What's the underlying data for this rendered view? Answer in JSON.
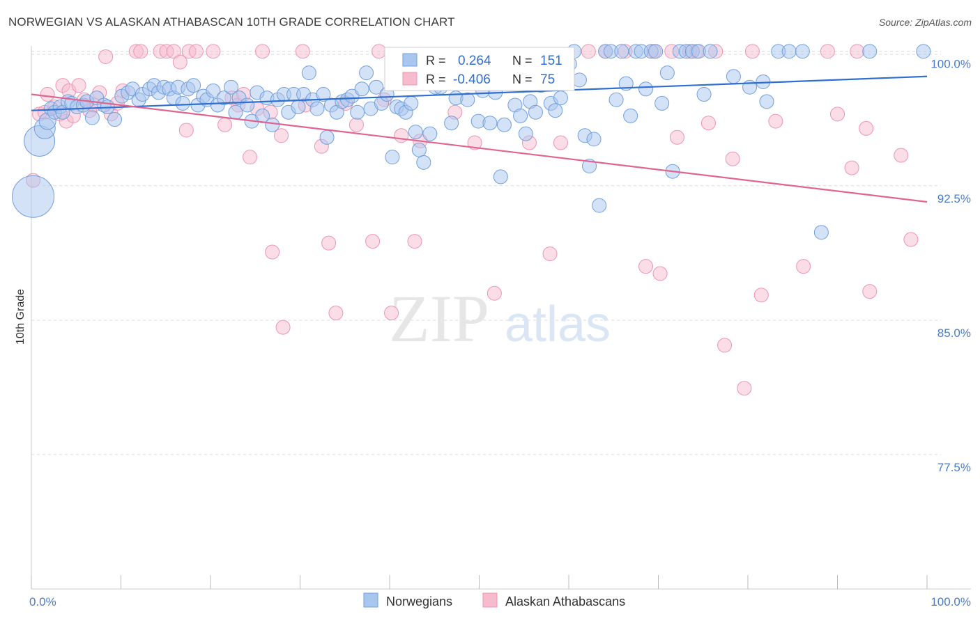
{
  "title": "NORWEGIAN VS ALASKAN ATHABASCAN 10TH GRADE CORRELATION CHART",
  "source": "Source: ZipAtlas.com",
  "watermark": {
    "zip": "ZIP",
    "atlas": "atlas"
  },
  "colors": {
    "blue_fill": "#a9c6ef",
    "blue_stroke": "#6f9fdc",
    "blue_line": "#2f6fcf",
    "pink_fill": "#f6bccd",
    "pink_stroke": "#ec95b1",
    "pink_line": "#e0648f",
    "tick_text": "#4a7cc9",
    "grid": "#d9d9d9"
  },
  "legend_top": {
    "rows": [
      {
        "r_label": "R =",
        "r_value": "0.264",
        "n_label": "N =",
        "n_value": "151",
        "series": "blue"
      },
      {
        "r_label": "R =",
        "r_value": "-0.406",
        "n_label": "N =",
        "n_value": "75",
        "series": "pink"
      }
    ]
  },
  "legend_bottom": [
    {
      "label": "Norwegians",
      "series": "blue"
    },
    {
      "label": "Alaskan Athabascans",
      "series": "pink"
    }
  ],
  "chart_data": {
    "type": "scatter",
    "title": "NORWEGIAN VS ALASKAN ATHABASCAN 10TH GRADE CORRELATION CHART",
    "xlabel": "",
    "ylabel": "10th Grade",
    "xlim": [
      0,
      100
    ],
    "ylim": [
      70,
      101
    ],
    "y_ticks": [
      {
        "value": 100,
        "label": "100.0%"
      },
      {
        "value": 92.5,
        "label": "92.5%"
      },
      {
        "value": 85,
        "label": "85.0%"
      },
      {
        "value": 77.5,
        "label": "77.5%"
      }
    ],
    "x_tick_labels": [
      {
        "value": 0,
        "label": "0.0%"
      },
      {
        "value": 100,
        "label": "100.0%"
      }
    ],
    "x_minor_ticks": [
      0,
      10,
      20,
      30,
      40,
      50,
      60,
      70,
      80,
      90,
      100
    ],
    "grid": true,
    "series": [
      {
        "name": "Norwegians",
        "color": "blue",
        "trend": {
          "x": [
            0,
            100
          ],
          "y": [
            96.7,
            98.6
          ]
        },
        "points": [
          [
            0.2,
            91.9,
            3
          ],
          [
            0.9,
            95,
            2.2
          ],
          [
            1.5,
            95.7,
            1.5
          ],
          [
            1.8,
            96.1,
            1.2
          ],
          [
            2.2,
            96.8,
            1
          ],
          [
            2.6,
            96.6,
            1
          ],
          [
            3.2,
            96.9,
            1
          ],
          [
            3.5,
            96.6,
            1
          ],
          [
            4.1,
            97.2,
            1
          ],
          [
            4.5,
            97.1,
            1
          ],
          [
            5.1,
            96.9,
            1
          ],
          [
            5.8,
            97.0,
            1
          ],
          [
            6.2,
            97.2,
            1
          ],
          [
            6.8,
            96.3,
            1
          ],
          [
            7.3,
            97.4,
            1
          ],
          [
            8.1,
            97.0,
            1
          ],
          [
            8.5,
            96.9,
            1
          ],
          [
            9.3,
            96.2,
            1
          ],
          [
            10.1,
            97.5,
            1
          ],
          [
            10.8,
            97.7,
            1
          ],
          [
            11.3,
            97.9,
            1
          ],
          [
            12.0,
            97.3,
            1
          ],
          [
            12.4,
            97.6,
            1
          ],
          [
            13.2,
            97.9,
            1
          ],
          [
            13.7,
            98.1,
            1
          ],
          [
            14.2,
            97.7,
            1
          ],
          [
            14.8,
            98.0,
            1
          ],
          [
            15.4,
            97.9,
            1
          ],
          [
            15.9,
            97.4,
            1
          ],
          [
            16.4,
            98.0,
            1
          ],
          [
            16.9,
            97.1,
            1
          ],
          [
            17.5,
            97.9,
            1
          ],
          [
            18.1,
            98.1,
            1
          ],
          [
            18.6,
            97.0,
            1
          ],
          [
            19.2,
            97.5,
            1
          ],
          [
            19.6,
            97.3,
            1
          ],
          [
            20.3,
            97.8,
            1
          ],
          [
            20.8,
            97.0,
            1
          ],
          [
            21.5,
            97.4,
            1
          ],
          [
            22.3,
            98.0,
            1
          ],
          [
            22.8,
            96.6,
            1
          ],
          [
            23.2,
            97.4,
            1
          ],
          [
            24.1,
            97.0,
            1
          ],
          [
            24.6,
            96.1,
            1
          ],
          [
            25.2,
            97.7,
            1
          ],
          [
            25.8,
            96.4,
            1
          ],
          [
            26.3,
            97.4,
            1
          ],
          [
            26.9,
            95.9,
            1
          ],
          [
            27.5,
            97.3,
            1
          ],
          [
            28.2,
            97.6,
            1
          ],
          [
            28.7,
            96.6,
            1
          ],
          [
            29.3,
            97.6,
            1
          ],
          [
            29.8,
            96.9,
            1
          ],
          [
            30.4,
            97.6,
            1
          ],
          [
            31.0,
            98.8,
            1
          ],
          [
            31.4,
            97.3,
            1
          ],
          [
            31.9,
            96.8,
            1
          ],
          [
            32.6,
            97.6,
            1
          ],
          [
            33.0,
            95.2,
            1
          ],
          [
            33.5,
            97.0,
            1
          ],
          [
            34.1,
            96.6,
            1
          ],
          [
            34.7,
            97.2,
            1
          ],
          [
            35.3,
            97.3,
            1
          ],
          [
            35.8,
            97.5,
            1
          ],
          [
            36.4,
            96.6,
            1
          ],
          [
            36.9,
            97.9,
            1
          ],
          [
            37.4,
            98.8,
            1
          ],
          [
            37.9,
            96.8,
            1
          ],
          [
            38.5,
            98.0,
            1
          ],
          [
            39.1,
            97.1,
            1
          ],
          [
            39.7,
            97.6,
            1
          ],
          [
            40.3,
            94.1,
            1
          ],
          [
            40.8,
            96.9,
            1
          ],
          [
            41.3,
            96.8,
            1
          ],
          [
            41.8,
            96.6,
            1
          ],
          [
            42.4,
            97.1,
            1
          ],
          [
            42.9,
            95.5,
            1
          ],
          [
            43.3,
            94.5,
            1
          ],
          [
            43.8,
            93.8,
            1
          ],
          [
            44.5,
            95.4,
            1
          ],
          [
            45.1,
            98.0,
            1
          ],
          [
            45.7,
            98.0,
            1
          ],
          [
            46.3,
            98.4,
            1
          ],
          [
            46.9,
            96.0,
            1
          ],
          [
            47.4,
            97.4,
            1
          ],
          [
            48.1,
            98.3,
            1
          ],
          [
            48.7,
            97.3,
            1
          ],
          [
            49.3,
            99.4,
            1
          ],
          [
            49.9,
            96.1,
            1
          ],
          [
            50.4,
            97.8,
            1
          ],
          [
            51.2,
            96.0,
            1
          ],
          [
            51.8,
            97.7,
            1
          ],
          [
            52.4,
            93.0,
            1
          ],
          [
            52.8,
            95.9,
            1
          ],
          [
            53.4,
            99.3,
            1
          ],
          [
            54.0,
            97.0,
            1
          ],
          [
            54.6,
            96.4,
            1
          ],
          [
            55.2,
            95.4,
            1
          ],
          [
            55.7,
            97.2,
            1
          ],
          [
            56.3,
            96.6,
            1
          ],
          [
            56.9,
            98.1,
            1
          ],
          [
            57.4,
            98.5,
            1
          ],
          [
            58.0,
            97.1,
            1
          ],
          [
            58.5,
            96.7,
            1
          ],
          [
            59.1,
            97.4,
            1
          ],
          [
            59.6,
            99.6,
            1
          ],
          [
            60.1,
            99.3,
            1
          ],
          [
            60.6,
            100.0,
            1
          ],
          [
            61.2,
            98.4,
            1
          ],
          [
            61.8,
            95.3,
            1
          ],
          [
            62.3,
            93.6,
            1
          ],
          [
            62.8,
            95.1,
            1
          ],
          [
            63.4,
            91.4,
            1
          ],
          [
            64.1,
            100.0,
            1
          ],
          [
            64.7,
            100.0,
            1
          ],
          [
            65.3,
            97.3,
            1
          ],
          [
            65.9,
            100.0,
            1
          ],
          [
            66.4,
            98.2,
            1
          ],
          [
            66.9,
            96.4,
            1
          ],
          [
            67.5,
            100.0,
            1
          ],
          [
            68.1,
            100.0,
            1
          ],
          [
            68.6,
            97.9,
            1
          ],
          [
            69.2,
            100.0,
            1
          ],
          [
            69.7,
            100.0,
            1
          ],
          [
            70.4,
            97.1,
            1
          ],
          [
            71.0,
            98.8,
            1
          ],
          [
            71.6,
            93.3,
            1
          ],
          [
            72.4,
            100.0,
            1
          ],
          [
            73.1,
            100.0,
            1
          ],
          [
            73.8,
            100.0,
            1
          ],
          [
            74.5,
            100.0,
            1
          ],
          [
            75.1,
            97.6,
            1
          ],
          [
            75.8,
            100.0,
            1
          ],
          [
            78.4,
            98.6,
            1
          ],
          [
            80.2,
            98.0,
            1
          ],
          [
            81.7,
            98.3,
            1
          ],
          [
            82.1,
            97.2,
            1
          ],
          [
            83.4,
            100.0,
            1
          ],
          [
            84.6,
            100.0,
            1
          ],
          [
            86.1,
            100.0,
            1
          ],
          [
            88.2,
            89.9,
            1
          ],
          [
            93.6,
            100.0,
            1
          ],
          [
            99.6,
            100.0,
            1
          ]
        ]
      },
      {
        "name": "Alaskan Athabascans",
        "color": "pink",
        "trend": {
          "x": [
            0,
            100
          ],
          "y": [
            97.6,
            91.6
          ]
        },
        "points": [
          [
            0.2,
            92.8,
            1
          ],
          [
            0.9,
            96.5,
            1
          ],
          [
            1.5,
            96.6,
            1
          ],
          [
            1.8,
            97.6,
            1
          ],
          [
            2.6,
            96.9,
            1
          ],
          [
            3.2,
            96.5,
            1
          ],
          [
            3.5,
            98.1,
            1
          ],
          [
            3.9,
            96.1,
            1
          ],
          [
            4.2,
            97.8,
            1
          ],
          [
            4.7,
            96.4,
            1
          ],
          [
            5.3,
            98.1,
            1
          ],
          [
            5.9,
            97.3,
            1
          ],
          [
            6.5,
            96.7,
            1
          ],
          [
            7.0,
            97.0,
            1
          ],
          [
            7.6,
            97.7,
            1
          ],
          [
            8.3,
            99.7,
            1
          ],
          [
            8.9,
            96.5,
            1
          ],
          [
            9.6,
            97.1,
            1
          ],
          [
            10.2,
            97.8,
            1
          ],
          [
            11.7,
            100.0,
            1
          ],
          [
            12.2,
            100.0,
            1
          ],
          [
            14.4,
            100.0,
            1
          ],
          [
            15.1,
            100.0,
            1
          ],
          [
            15.9,
            100.0,
            1
          ],
          [
            16.6,
            99.4,
            1
          ],
          [
            17.3,
            95.6,
            1
          ],
          [
            17.6,
            100.0,
            1
          ],
          [
            18.4,
            100.0,
            1
          ],
          [
            20.3,
            100.0,
            1
          ],
          [
            21.6,
            95.9,
            1
          ],
          [
            22.4,
            97.4,
            1
          ],
          [
            23.1,
            97.0,
            1
          ],
          [
            23.7,
            97.6,
            1
          ],
          [
            24.4,
            94.1,
            1
          ],
          [
            25.2,
            96.8,
            1
          ],
          [
            25.8,
            100.0,
            1
          ],
          [
            26.7,
            96.6,
            1
          ],
          [
            26.9,
            88.8,
            1
          ],
          [
            27.9,
            95.3,
            1
          ],
          [
            28.1,
            84.6,
            1
          ],
          [
            30.3,
            100.0,
            1
          ],
          [
            30.6,
            97.0,
            1
          ],
          [
            32.4,
            94.7,
            1
          ],
          [
            33.2,
            89.3,
            1
          ],
          [
            34.0,
            85.4,
            1
          ],
          [
            35.1,
            97.1,
            1
          ],
          [
            36.3,
            95.9,
            1
          ],
          [
            38.1,
            89.4,
            1
          ],
          [
            38.8,
            100.0,
            1
          ],
          [
            39.4,
            97.3,
            1
          ],
          [
            40.2,
            85.4,
            1
          ],
          [
            41.3,
            95.3,
            1
          ],
          [
            42.8,
            89.4,
            1
          ],
          [
            43.4,
            95.0,
            1
          ],
          [
            47.3,
            96.6,
            1
          ],
          [
            49.5,
            94.9,
            1
          ],
          [
            51.7,
            86.5,
            1
          ],
          [
            53.8,
            98.2,
            1
          ],
          [
            55.6,
            94.9,
            1
          ],
          [
            57.9,
            88.7,
            1
          ],
          [
            59.1,
            94.9,
            1
          ],
          [
            62.2,
            100.0,
            1
          ],
          [
            64.1,
            100.0,
            1
          ],
          [
            66.3,
            100.0,
            1
          ],
          [
            68.6,
            88.0,
            1
          ],
          [
            69.5,
            100.0,
            1
          ],
          [
            70.2,
            87.6,
            1
          ],
          [
            71.5,
            100.0,
            1
          ],
          [
            72.1,
            95.2,
            1
          ],
          [
            73.5,
            100.0,
            1
          ],
          [
            74.3,
            100.0,
            1
          ],
          [
            75.6,
            96.0,
            1
          ],
          [
            76.4,
            100.0,
            1
          ],
          [
            77.4,
            83.6,
            1
          ],
          [
            78.3,
            94.0,
            1
          ],
          [
            79.6,
            81.2,
            1
          ],
          [
            80.5,
            100.0,
            1
          ],
          [
            81.5,
            86.4,
            1
          ],
          [
            83.1,
            96.1,
            1
          ],
          [
            86.2,
            88.0,
            1
          ],
          [
            88.9,
            100.0,
            1
          ],
          [
            90.0,
            96.5,
            1
          ],
          [
            91.6,
            93.5,
            1
          ],
          [
            92.2,
            100.0,
            1
          ],
          [
            93.2,
            95.7,
            1
          ],
          [
            93.6,
            86.6,
            1
          ],
          [
            97.1,
            94.2,
            1
          ],
          [
            98.2,
            89.5,
            1
          ]
        ]
      }
    ]
  }
}
